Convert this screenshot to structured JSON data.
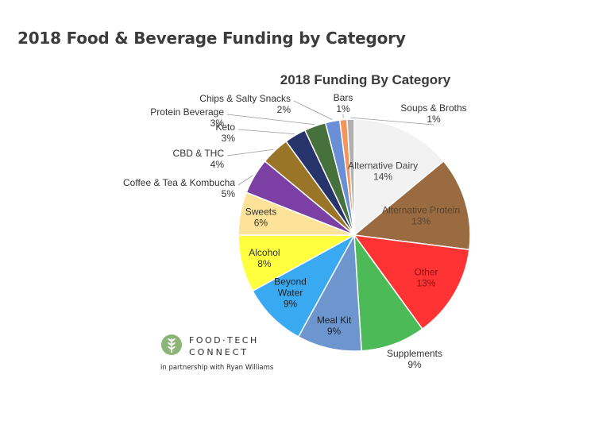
{
  "header": {
    "title": "2018 Food & Beverage Funding by Category"
  },
  "logo": {
    "brand_top": "FOOD·TECH",
    "brand_bottom": "CONNECT",
    "partner": "in partnership with Ryan Williams"
  },
  "chart_data": {
    "type": "pie",
    "title": "2018 Funding By Category",
    "start_angle_deg": 0,
    "direction": "clockwise",
    "slices": [
      {
        "label": "Alternative Dairy",
        "pct_label": "14%",
        "value": 14,
        "color": "#f2f2f2"
      },
      {
        "label": "Alternative Protein",
        "pct_label": "13%",
        "value": 13,
        "color": "#9a6a40"
      },
      {
        "label": "Other",
        "pct_label": "13%",
        "value": 13,
        "color": "#ff3333"
      },
      {
        "label": "Supplements",
        "pct_label": "9%",
        "value": 9,
        "color": "#4cba57"
      },
      {
        "label": "Meal Kit",
        "pct_label": "9%",
        "value": 9,
        "color": "#6d96cf"
      },
      {
        "label": "Beyond Water",
        "pct_label": "9%",
        "value": 9,
        "color": "#39aaf2"
      },
      {
        "label": "Alcohol",
        "pct_label": "8%",
        "value": 8,
        "color": "#ffff40"
      },
      {
        "label": "Sweets",
        "pct_label": "6%",
        "value": 6,
        "color": "#fde39a"
      },
      {
        "label": "Coffee & Tea & Kombucha",
        "pct_label": "5%",
        "value": 5,
        "color": "#7c3fa3"
      },
      {
        "label": "CBD & THC",
        "pct_label": "4%",
        "value": 4,
        "color": "#9a7528"
      },
      {
        "label": "Keto",
        "pct_label": "3%",
        "value": 3,
        "color": "#27336b"
      },
      {
        "label": "Protein Beverage",
        "pct_label": "3%",
        "value": 3,
        "color": "#47713c"
      },
      {
        "label": "Chips & Salty Snacks",
        "pct_label": "2%",
        "value": 2,
        "color": "#6b8fd6"
      },
      {
        "label": "Bars",
        "pct_label": "1%",
        "value": 1,
        "color": "#f5945c"
      },
      {
        "label": "Soups & Broths",
        "pct_label": "1%",
        "value": 1,
        "color": "#b0b0b0"
      }
    ]
  }
}
